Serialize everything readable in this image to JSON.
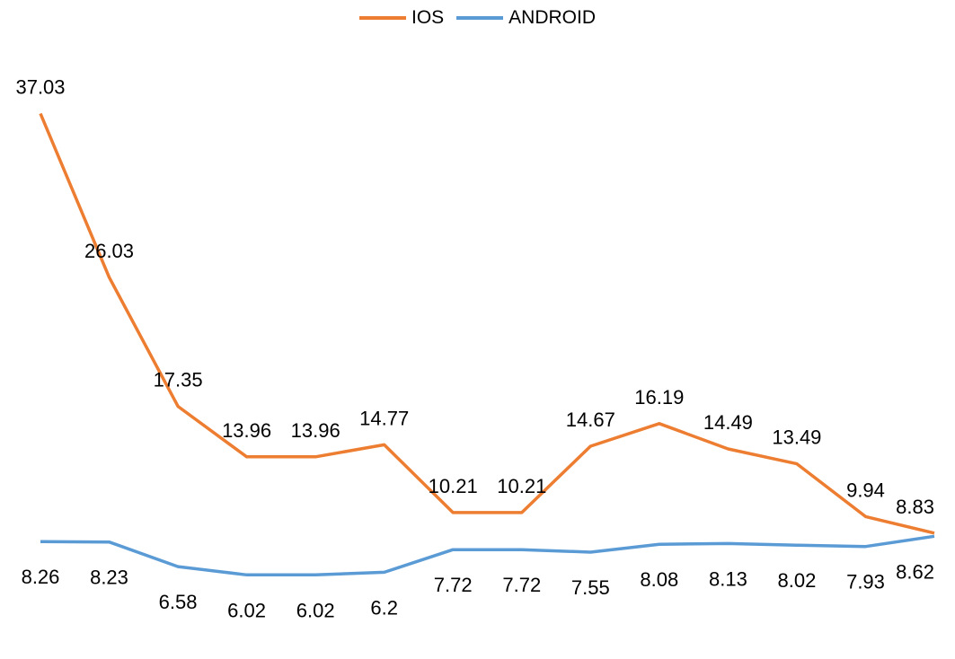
{
  "chart_data": {
    "type": "line",
    "categories": [
      "",
      "",
      "",
      "",
      "",
      "",
      "",
      "",
      "",
      "",
      "",
      "",
      "",
      ""
    ],
    "series": [
      {
        "name": "IOS",
        "color": "#ED7D31",
        "values": [
          37.03,
          26.03,
          17.35,
          13.96,
          13.96,
          14.77,
          10.21,
          10.21,
          14.67,
          16.19,
          14.49,
          13.49,
          9.94,
          8.83
        ],
        "label_position": "above"
      },
      {
        "name": "ANDROID",
        "color": "#5B9BD5",
        "values": [
          8.26,
          8.23,
          6.58,
          6.02,
          6.02,
          6.2,
          7.72,
          7.72,
          7.55,
          8.08,
          8.13,
          8.02,
          7.93,
          8.62
        ],
        "label_position": "below"
      }
    ],
    "ylim": [
      0,
      40
    ],
    "grid": false,
    "legend": "top-center",
    "xlabel": "",
    "ylabel": ""
  }
}
